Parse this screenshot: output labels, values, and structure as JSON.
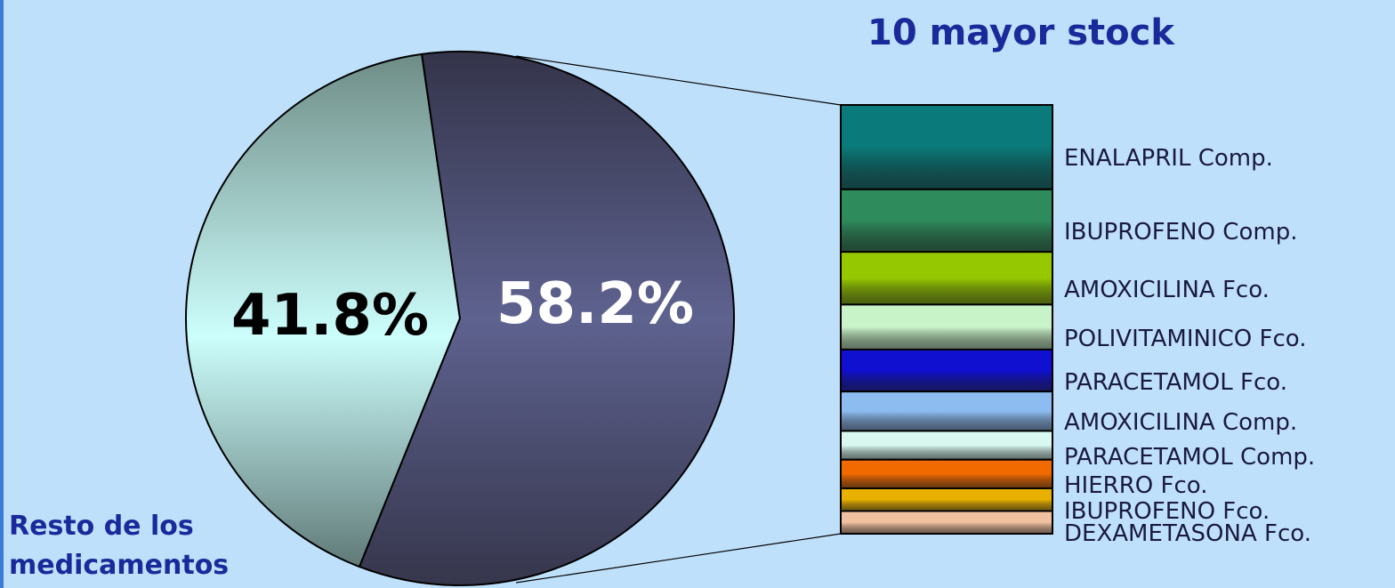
{
  "chart_data": [
    {
      "type": "pie",
      "title": "",
      "slices": [
        {
          "label": "Resto de los medicamentos",
          "value": 41.8,
          "display": "41.8%",
          "color": "#c8fdfb"
        },
        {
          "label": "10 mayor stock",
          "value": 58.2,
          "display": "58.2%",
          "color": "#5a5e92"
        }
      ]
    },
    {
      "type": "bar",
      "subtype": "stacked-100",
      "title": "10 mayor stock",
      "categories": [
        "ENALAPRIL Comp.",
        "IBUPROFENO Comp.",
        "AMOXICILINA Fco.",
        "POLIVITAMINICO Fco.",
        "PARACETAMOL Fco.",
        "AMOXICILINA Comp.",
        "PARACETAMOL Comp.",
        "HIERRO Fco.",
        "IBUPROFENO Fco.",
        "DEXAMETASONA Fco."
      ],
      "values": [
        19.7,
        14.6,
        12.3,
        10.5,
        9.8,
        9.2,
        6.7,
        6.7,
        5.3,
        5.3
      ],
      "colors": [
        "#0a7a7a",
        "#2e8c5c",
        "#95c800",
        "#c8f2c8",
        "#1010d0",
        "#8cbcf0",
        "#d8f8f0",
        "#f06a00",
        "#e8b000",
        "#f0c0a0"
      ]
    }
  ],
  "labels": {
    "title": "10 mayor stock",
    "rest_line1": "Resto de los",
    "rest_line2": "medicamentos",
    "pct_rest": "41.8%",
    "pct_top": "58.2%"
  }
}
